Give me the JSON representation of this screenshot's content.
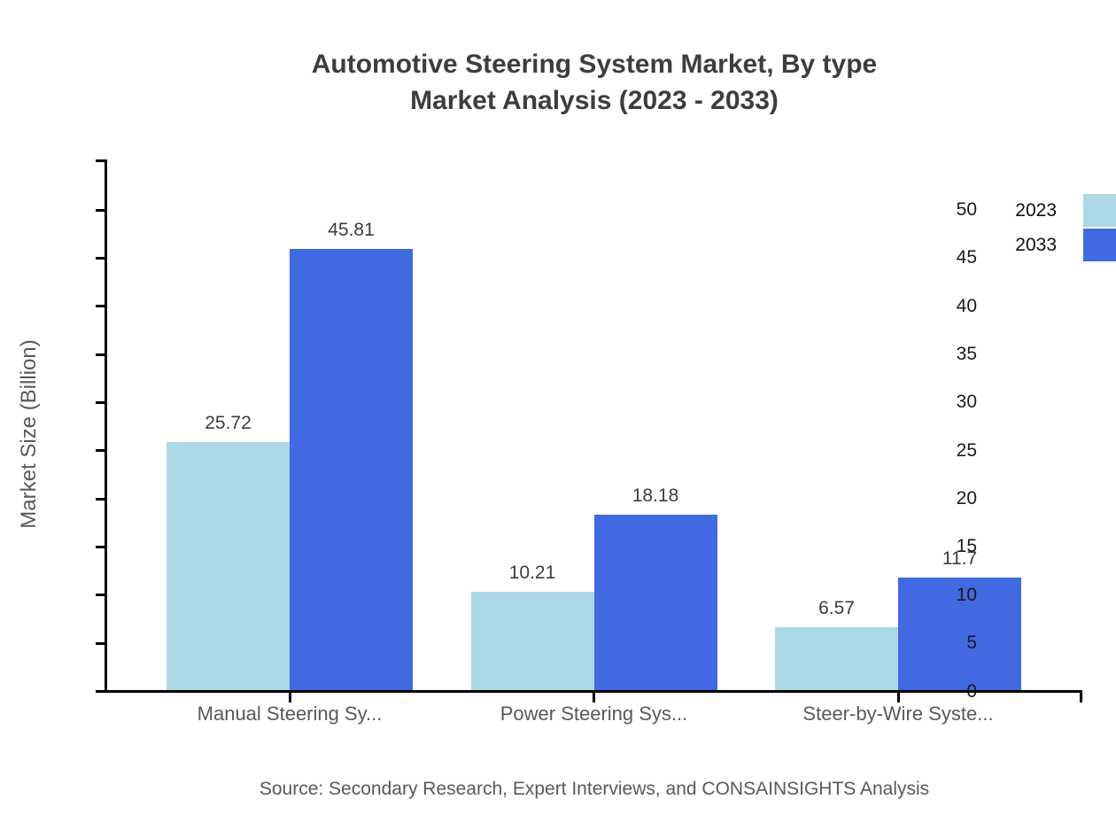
{
  "title": {
    "line1": "Automotive Steering System Market, By type",
    "line2": "Market Analysis (2023 - 2033)"
  },
  "source": "Source: Secondary Research, Expert Interviews, and CONSAINSIGHTS Analysis",
  "colors": {
    "series_2023": "#ADD8E6",
    "series_2033": "#4169E1",
    "axis": "#000000",
    "title_text": "#3d3d3d",
    "tick_text": "#1a1a1a",
    "muted_text": "#595959"
  },
  "chart_data": {
    "type": "bar",
    "title": "Automotive Steering System Market, By type Market Analysis (2023 - 2033)",
    "categories": [
      "Manual Steering Sy...",
      "Power Steering Sys...",
      "Steer-by-Wire Syste..."
    ],
    "series": [
      {
        "name": "2023",
        "color": "#ADD8E6",
        "values": [
          25.72,
          10.21,
          6.57
        ]
      },
      {
        "name": "2033",
        "color": "#4169E1",
        "values": [
          45.81,
          18.18,
          11.7
        ]
      }
    ],
    "value_labels": [
      "25.72",
      "45.81",
      "10.21",
      "18.18",
      "6.57",
      "11.7"
    ],
    "xlabel": "",
    "ylabel": "Market Size (Billion)",
    "ylim": [
      0,
      55
    ],
    "yticks": [
      0,
      5,
      10,
      15,
      20,
      25,
      30,
      35,
      40,
      45,
      50
    ],
    "grid": false,
    "legend_position": "top-right",
    "legend_entries": [
      "2023",
      "2033"
    ]
  }
}
